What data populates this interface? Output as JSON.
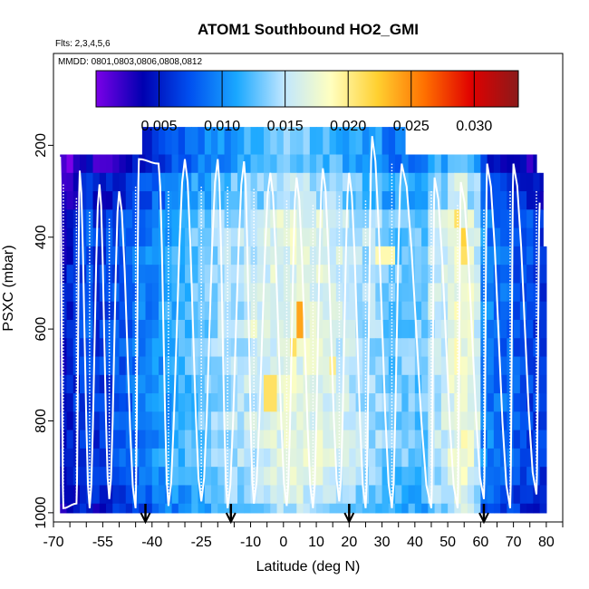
{
  "chart_data": {
    "type": "heatmap",
    "title": "ATOM1 Southbound HO2_GMI",
    "flights_note": "Flts: 2,3,4,5,6",
    "dates_note": "MMDD: 0801,0803,0806,0808,0812",
    "xlabel": "Latitude (deg N)",
    "ylabel": "PSXC (mbar)",
    "xlim": [
      -70,
      85
    ],
    "ylim": [
      1020,
      0
    ],
    "xticks": [
      -70,
      -55,
      -40,
      -25,
      -10,
      0,
      10,
      20,
      30,
      40,
      50,
      60,
      70,
      80
    ],
    "yticks": [
      200,
      400,
      600,
      800,
      1000
    ],
    "colorbar": {
      "range": [
        0,
        0.0335
      ],
      "ticks": [
        0.005,
        0.01,
        0.015,
        0.02,
        0.025,
        0.03
      ],
      "tick_labels": [
        "0.005",
        "0.010",
        "0.015",
        "0.020",
        "0.025",
        "0.030"
      ],
      "colors": [
        "#7b00e8",
        "#0000b0",
        "#0050f0",
        "#1aa8ff",
        "#bfe6ff",
        "#ffffc0",
        "#ffd030",
        "#ff7000",
        "#e00000",
        "#8b1a1a"
      ]
    },
    "latitude_bins": {
      "start": -68,
      "step": 2,
      "centers": [
        -67,
        -65,
        -63,
        -61,
        -59,
        -57,
        -55,
        -53,
        -51,
        -49,
        -47,
        -45,
        -43,
        -41,
        -39,
        -37,
        -35,
        -33,
        -31,
        -29,
        -27,
        -25,
        -23,
        -21,
        -19,
        -17,
        -15,
        -13,
        -11,
        -9,
        -7,
        -5,
        -3,
        -1,
        1,
        3,
        5,
        7,
        9,
        11,
        13,
        15,
        17,
        19,
        21,
        23,
        25,
        27,
        29,
        31,
        33,
        35,
        37,
        39,
        41,
        43,
        45,
        47,
        49,
        51,
        53,
        55,
        57,
        59,
        61,
        63,
        65,
        67,
        69,
        71,
        73,
        75,
        77,
        79
      ]
    },
    "pressure_rows": [
      {
        "top": 160,
        "bottom": 220,
        "lat_range": [
          -43,
          37
        ],
        "center": 0.006
      },
      {
        "top": 220,
        "bottom": 260,
        "lat_range": [
          -68,
          77
        ],
        "center": 0.01
      },
      {
        "top": 260,
        "bottom": 300,
        "lat_range": [
          -68,
          79
        ],
        "center": 0.011
      },
      {
        "top": 300,
        "bottom": 340,
        "lat_range": [
          -68,
          79
        ],
        "center": 0.012
      },
      {
        "top": 340,
        "bottom": 380,
        "lat_range": [
          -68,
          79
        ],
        "center": 0.013
      },
      {
        "top": 380,
        "bottom": 420,
        "lat_range": [
          -68,
          79
        ],
        "center": 0.014
      },
      {
        "top": 420,
        "bottom": 460,
        "lat_range": [
          -68,
          80
        ],
        "center": 0.014
      },
      {
        "top": 460,
        "bottom": 500,
        "lat_range": [
          -68,
          80
        ],
        "center": 0.015
      },
      {
        "top": 500,
        "bottom": 540,
        "lat_range": [
          -68,
          80
        ],
        "center": 0.015
      },
      {
        "top": 540,
        "bottom": 580,
        "lat_range": [
          -68,
          80
        ],
        "center": 0.015
      },
      {
        "top": 580,
        "bottom": 620,
        "lat_range": [
          -68,
          80
        ],
        "center": 0.015
      },
      {
        "top": 620,
        "bottom": 660,
        "lat_range": [
          -68,
          80
        ],
        "center": 0.015
      },
      {
        "top": 660,
        "bottom": 700,
        "lat_range": [
          -68,
          80
        ],
        "center": 0.015
      },
      {
        "top": 700,
        "bottom": 740,
        "lat_range": [
          -68,
          80
        ],
        "center": 0.015
      },
      {
        "top": 740,
        "bottom": 780,
        "lat_range": [
          -68,
          80
        ],
        "center": 0.015
      },
      {
        "top": 780,
        "bottom": 820,
        "lat_range": [
          -68,
          80
        ],
        "center": 0.015
      },
      {
        "top": 820,
        "bottom": 860,
        "lat_range": [
          -68,
          80
        ],
        "center": 0.014
      },
      {
        "top": 860,
        "bottom": 900,
        "lat_range": [
          -68,
          80
        ],
        "center": 0.013
      },
      {
        "top": 900,
        "bottom": 940,
        "lat_range": [
          -68,
          80
        ],
        "center": 0.012
      },
      {
        "top": 940,
        "bottom": 980,
        "lat_range": [
          -68,
          80
        ],
        "center": 0.011
      },
      {
        "top": 980,
        "bottom": 1000,
        "lat_range": [
          -68,
          80
        ],
        "center": 0.01
      }
    ],
    "highlights": [
      {
        "lat": [
          3,
          7
        ],
        "p": [
          560,
          620
        ],
        "value": 0.024
      },
      {
        "lat": [
          -7,
          -1
        ],
        "p": [
          700,
          760
        ],
        "value": 0.021
      },
      {
        "lat": [
          53,
          57
        ],
        "p": [
          380,
          420
        ],
        "value": 0.022
      },
      {
        "lat": [
          55,
          57
        ],
        "p": [
          500,
          540
        ],
        "value": 0.023
      },
      {
        "lat": [
          51,
          55
        ],
        "p": [
          340,
          380
        ],
        "value": 0.021
      },
      {
        "lat": [
          53,
          57
        ],
        "p": [
          420,
          460
        ],
        "value": 0.021
      },
      {
        "lat": [
          13,
          17
        ],
        "p": [
          660,
          700
        ],
        "value": 0.02
      },
      {
        "lat": [
          -11,
          -7
        ],
        "p": [
          580,
          620
        ],
        "value": 0.018
      },
      {
        "lat": [
          1,
          5
        ],
        "p": [
          620,
          660
        ],
        "value": 0.021
      },
      {
        "lat": [
          27,
          35
        ],
        "p": [
          420,
          460
        ],
        "value": 0.019
      }
    ],
    "flight_track_lows": [
      {
        "lat": -67,
        "p": 990
      },
      {
        "lat": -63,
        "p": 980
      },
      {
        "lat": -59,
        "p": 990
      },
      {
        "lat": -53,
        "p": 970
      },
      {
        "lat": -45,
        "p": 990
      },
      {
        "lat": -35,
        "p": 985
      },
      {
        "lat": -25,
        "p": 975
      },
      {
        "lat": -17,
        "p": 990
      },
      {
        "lat": -9,
        "p": 980
      },
      {
        "lat": 1,
        "p": 985
      },
      {
        "lat": 9,
        "p": 990
      },
      {
        "lat": 17,
        "p": 975
      },
      {
        "lat": 25,
        "p": 990
      },
      {
        "lat": 33,
        "p": 990
      },
      {
        "lat": 45,
        "p": 990
      },
      {
        "lat": 53,
        "p": 990
      },
      {
        "lat": 61,
        "p": 970
      },
      {
        "lat": 69,
        "p": 990
      },
      {
        "lat": 77,
        "p": 960
      }
    ],
    "flight_track_highs": [
      {
        "lat": -68,
        "p": 225
      },
      {
        "lat": -62,
        "p": 255
      },
      {
        "lat": -56,
        "p": 285
      },
      {
        "lat": -50,
        "p": 300
      },
      {
        "lat": -44,
        "p": 230
      },
      {
        "lat": -38,
        "p": 240
      },
      {
        "lat": -30,
        "p": 230
      },
      {
        "lat": -20,
        "p": 230
      },
      {
        "lat": -12,
        "p": 235
      },
      {
        "lat": -4,
        "p": 260
      },
      {
        "lat": 4,
        "p": 270
      },
      {
        "lat": 12,
        "p": 250
      },
      {
        "lat": 20,
        "p": 260
      },
      {
        "lat": 27,
        "p": 180
      },
      {
        "lat": 36,
        "p": 240
      },
      {
        "lat": 46,
        "p": 270
      },
      {
        "lat": 54,
        "p": 280
      },
      {
        "lat": 62,
        "p": 240
      },
      {
        "lat": 70,
        "p": 240
      },
      {
        "lat": 78,
        "p": 325
      }
    ],
    "flight_markers": [
      -42,
      -16,
      20,
      61
    ]
  }
}
